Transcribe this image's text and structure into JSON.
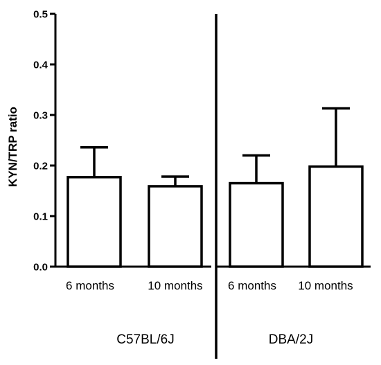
{
  "chart_data": {
    "type": "bar",
    "ylabel": "KYN/TRP ratio",
    "ylim": [
      0,
      0.5
    ],
    "yticks": [
      "0.0",
      "0.1",
      "0.2",
      "0.3",
      "0.4",
      "0.5"
    ],
    "groups": [
      {
        "name": "C57BL/6J",
        "categories": [
          "6 months",
          "10 months"
        ],
        "values": [
          0.177,
          0.159
        ],
        "error_upper": [
          0.236,
          0.178
        ]
      },
      {
        "name": "DBA/2J",
        "categories": [
          "6 months",
          "10 months"
        ],
        "values": [
          0.165,
          0.198
        ],
        "error_upper": [
          0.22,
          0.313
        ]
      }
    ]
  }
}
